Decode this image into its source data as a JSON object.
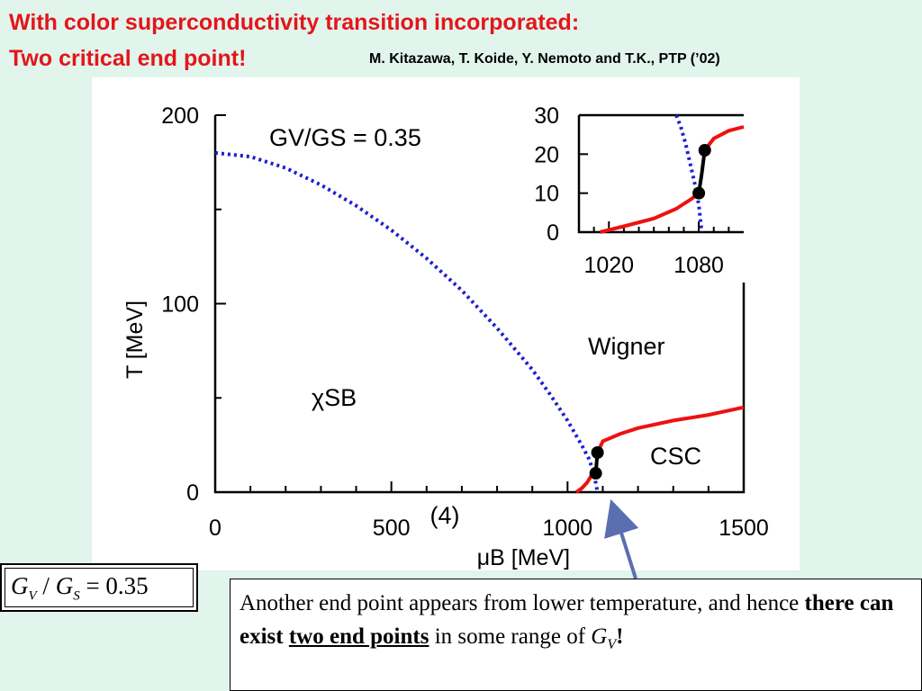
{
  "title_line1": "With color superconductivity transition incorporated:",
  "title_line2": "Two critical end point!",
  "citation": "M. Kitazawa, T. Koide, Y. Nemoto and T.K., PTP (’02)",
  "formula": {
    "g": "G",
    "v": "V",
    "slash": " / ",
    "s": "S",
    "eq": " = 0.35"
  },
  "note": {
    "part1": "Another end point appears from lower temperature, and hence ",
    "bold1": "there can exist ",
    "bold_underline": "two end points",
    "part2": " in some range of ",
    "gv_g": "G",
    "gv_v": "V",
    "excl": "!"
  },
  "colors": {
    "title": "#e4151b",
    "crossover": "#1f1fd0",
    "csc": "#ee1111",
    "arrow": "#5a6fb0",
    "background": "#e1f5ec"
  },
  "chart_data": [
    {
      "type": "line",
      "xlabel": "μB [MeV]",
      "ylabel": "T [MeV]",
      "xlim": [
        0,
        1500
      ],
      "ylim": [
        0,
        200
      ],
      "xticks": [
        "0",
        "500",
        "1000",
        "1500"
      ],
      "yticks": [
        "0",
        "100",
        "200"
      ],
      "annotations": {
        "ratio": "GV/GS = 0.35",
        "chisb": "χSB",
        "wigner": "Wigner",
        "csc": "CSC",
        "label4": "(4)"
      },
      "series": [
        {
          "style": "dotted-blue",
          "x": [
            0,
            100,
            200,
            300,
            400,
            500,
            600,
            700,
            800,
            900,
            950,
            1000,
            1040,
            1060,
            1075,
            1080,
            1085
          ],
          "y": [
            180,
            178,
            172,
            163,
            152,
            139,
            124,
            107,
            87,
            65,
            52,
            38,
            25,
            18,
            10,
            5,
            0
          ]
        },
        {
          "style": "solid-red",
          "x": [
            1025,
            1040,
            1055,
            1065,
            1072,
            1080
          ],
          "y": [
            0,
            2,
            5,
            8,
            10,
            10
          ]
        },
        {
          "style": "solid-black",
          "x": [
            1080,
            1085
          ],
          "y": [
            10,
            21
          ]
        },
        {
          "style": "solid-red",
          "x": [
            1085,
            1100,
            1150,
            1200,
            1300,
            1400,
            1500
          ],
          "y": [
            21,
            27,
            31,
            34,
            38,
            41,
            45
          ]
        }
      ],
      "points": [
        {
          "x": 1080,
          "y": 10
        },
        {
          "x": 1085,
          "y": 21
        }
      ]
    },
    {
      "type": "line",
      "inset": true,
      "xlim": [
        1000,
        1110
      ],
      "ylim": [
        0,
        30
      ],
      "xticks": [
        "1020",
        "1080"
      ],
      "yticks": [
        "0",
        "10",
        "20",
        "30"
      ],
      "series": [
        {
          "style": "dotted-blue",
          "x": [
            1065,
            1068,
            1071,
            1074,
            1077,
            1080,
            1082
          ],
          "y": [
            30,
            27,
            23,
            18,
            13,
            7,
            0
          ]
        },
        {
          "style": "solid-red",
          "x": [
            1014,
            1030,
            1050,
            1065,
            1075,
            1080
          ],
          "y": [
            0,
            1.5,
            3.5,
            6,
            8.5,
            10
          ]
        },
        {
          "style": "solid-black",
          "x": [
            1080,
            1082,
            1084
          ],
          "y": [
            10,
            15,
            21
          ]
        },
        {
          "style": "solid-red",
          "x": [
            1084,
            1090,
            1100,
            1110
          ],
          "y": [
            21,
            24,
            26,
            27
          ]
        }
      ],
      "points": [
        {
          "x": 1080,
          "y": 10
        },
        {
          "x": 1084,
          "y": 21
        }
      ]
    }
  ]
}
